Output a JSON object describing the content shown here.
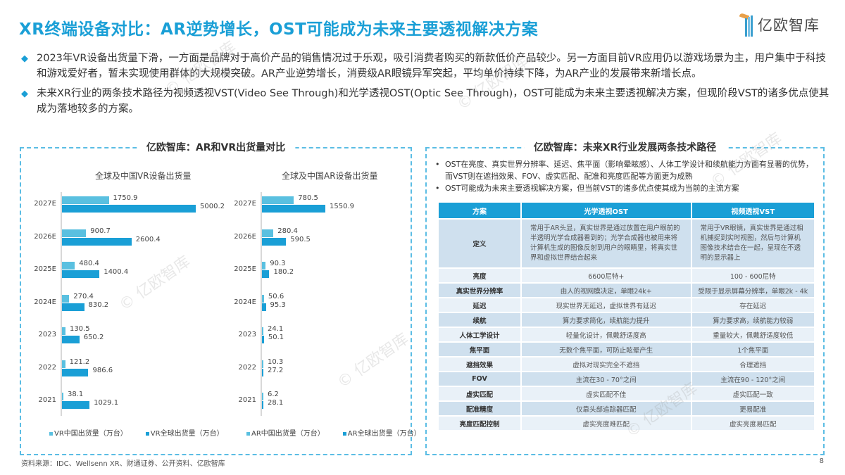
{
  "header": {
    "title": "XR终端设备对比：AR逆势增长，OST可能成为未来主要透视解决方案",
    "logo_text": "亿欧智库"
  },
  "bullets": [
    "2023年VR设备出货量下滑，一方面是品牌对于高价产品的销售情况过于乐观，吸引消费者购买的新款低价产品较少。另一方面目前VR应用仍以游戏场景为主，用户集中于科技和游戏爱好者，暂未实现使用群体的大规模突破。AR产业逆势增长，消费级AR眼镜异军突起，平均单价持续下降，为AR产业的发展带来新增长点。",
    "未来XR行业的两条技术路径为视频透视VST(Video See Through)和光学透视OST(Optic See Through)，OST可能成为未来主要透视解决方案，但现阶段VST的诸多优点使其成为落地较多的方案。"
  ],
  "left_panel": {
    "title": "亿欧智库：AR和VR出货量对比"
  },
  "right_panel": {
    "title": "亿欧智库：未来XR行业发展两条技术路径",
    "bullets": [
      "OST在亮度、真实世界分辨率、延迟、焦平面（影响晕眩感）、人体工学设计和续航能力方面有显著的优势，而VST则在遮挡效果、FOV、虚实匹配、配准和亮度匹配等方面更为成熟",
      "OST可能成为未来主要透视解决方案，但当前VST的诸多优点使其成为当前的主流方案"
    ],
    "table": {
      "headers": [
        "方案",
        "光学透视OST",
        "视频透视VST"
      ],
      "rows": [
        [
          "定义",
          "常用于AR头显，真实世界是通过放置在用户眼前的半透明光学合成器看到的；光学合成器也被用来将计算机生成的图像反射到用户的眼睛里，将真实世界和虚拟世界结合起来",
          "常用于VR眼镜，真实世界是通过相机捕捉到实时视图，然后与计算机图像技术结合在一起，呈现在不透明的显示器上"
        ],
        [
          "亮度",
          "6600尼特+",
          "100 - 600尼特"
        ],
        [
          "真实世界分辨率",
          "由人的视网膜决定，单眼24k+",
          "受限于显示屏幕分辨率，单眼2k - 4k"
        ],
        [
          "延迟",
          "现实世界无延迟，虚拟世界有延迟",
          "存在延迟"
        ],
        [
          "续航",
          "算力要求简化，续航能力提升",
          "算力要求高，续航能力较弱"
        ],
        [
          "人体工学设计",
          "轻量化设计，佩戴舒适度高",
          "重量较大，佩戴舒适度较低"
        ],
        [
          "焦平面",
          "无数个焦平面，可防止眩晕产生",
          "1个焦平面"
        ],
        [
          "遮挡效果",
          "虚拟对现实完全不遮挡",
          "合理遮挡"
        ],
        [
          "FOV",
          "主流在30 - 70°之间",
          "主流在90 - 120°之间"
        ],
        [
          "虚实匹配",
          "虚实匹配不佳",
          "虚实匹配一致"
        ],
        [
          "配准精度",
          "仅靠头部追踪器匹配",
          "更易配准"
        ],
        [
          "亮度匹配控制",
          "虚实亮度难匹配",
          "虚实亮度易匹配"
        ]
      ]
    }
  },
  "footer": {
    "source": "资料来源：IDC、Wellsenn XR、财通证券、公开资料、亿欧智库",
    "page": "8"
  },
  "watermark": "© 亿欧智库",
  "colors": {
    "accent": "#1a9fd6",
    "china_bar": "#5ac0e0",
    "global_bar": "#1a9fd6"
  },
  "chart_data": [
    {
      "type": "bar",
      "orientation": "horizontal",
      "title": "全球及中国VR设备出货量",
      "categories": [
        "2027E",
        "2026E",
        "2025E",
        "2024E",
        "2023",
        "2022",
        "2021"
      ],
      "series": [
        {
          "name": "VR中国出货量（万台）",
          "values": [
            1750.9,
            900.7,
            480.4,
            270.4,
            130.5,
            121.2,
            38.1
          ]
        },
        {
          "name": "VR全球出货量（万台）",
          "values": [
            5000.2,
            2600.4,
            1400.4,
            830.2,
            650.2,
            986.6,
            1029.1
          ]
        }
      ],
      "labels": {
        "china": [
          "1750.9",
          "900.7",
          "480.4",
          "270.4",
          "130.5",
          "121.2",
          "38.1"
        ],
        "global": [
          "5000.2",
          "2600.4",
          "1400.4",
          "830.2",
          "650.2",
          "986.6",
          "1029.1"
        ]
      },
      "legend_position": "bottom",
      "grid": false
    },
    {
      "type": "bar",
      "orientation": "horizontal",
      "title": "全球及中国AR设备出货量",
      "categories": [
        "2027E",
        "2026E",
        "2025E",
        "2024E",
        "2023",
        "2022",
        "2021"
      ],
      "series": [
        {
          "name": "AR中国出货量（万台）",
          "values": [
            780.5,
            280.4,
            90.3,
            50.6,
            24.1,
            10.3,
            6.2
          ]
        },
        {
          "name": "AR全球出货量（万台）",
          "values": [
            1550.9,
            590.5,
            180.2,
            95.3,
            50.1,
            27.2,
            28.1
          ]
        }
      ],
      "labels": {
        "china": [
          "780.5",
          "280.4",
          "90.3",
          "50.6",
          "24.1",
          "10.3",
          "6.2"
        ],
        "global": [
          "1550.9",
          "590.5",
          "180.2",
          "95.3",
          "50.1",
          "27.2",
          "28.1"
        ]
      },
      "legend_position": "bottom",
      "grid": false
    }
  ]
}
